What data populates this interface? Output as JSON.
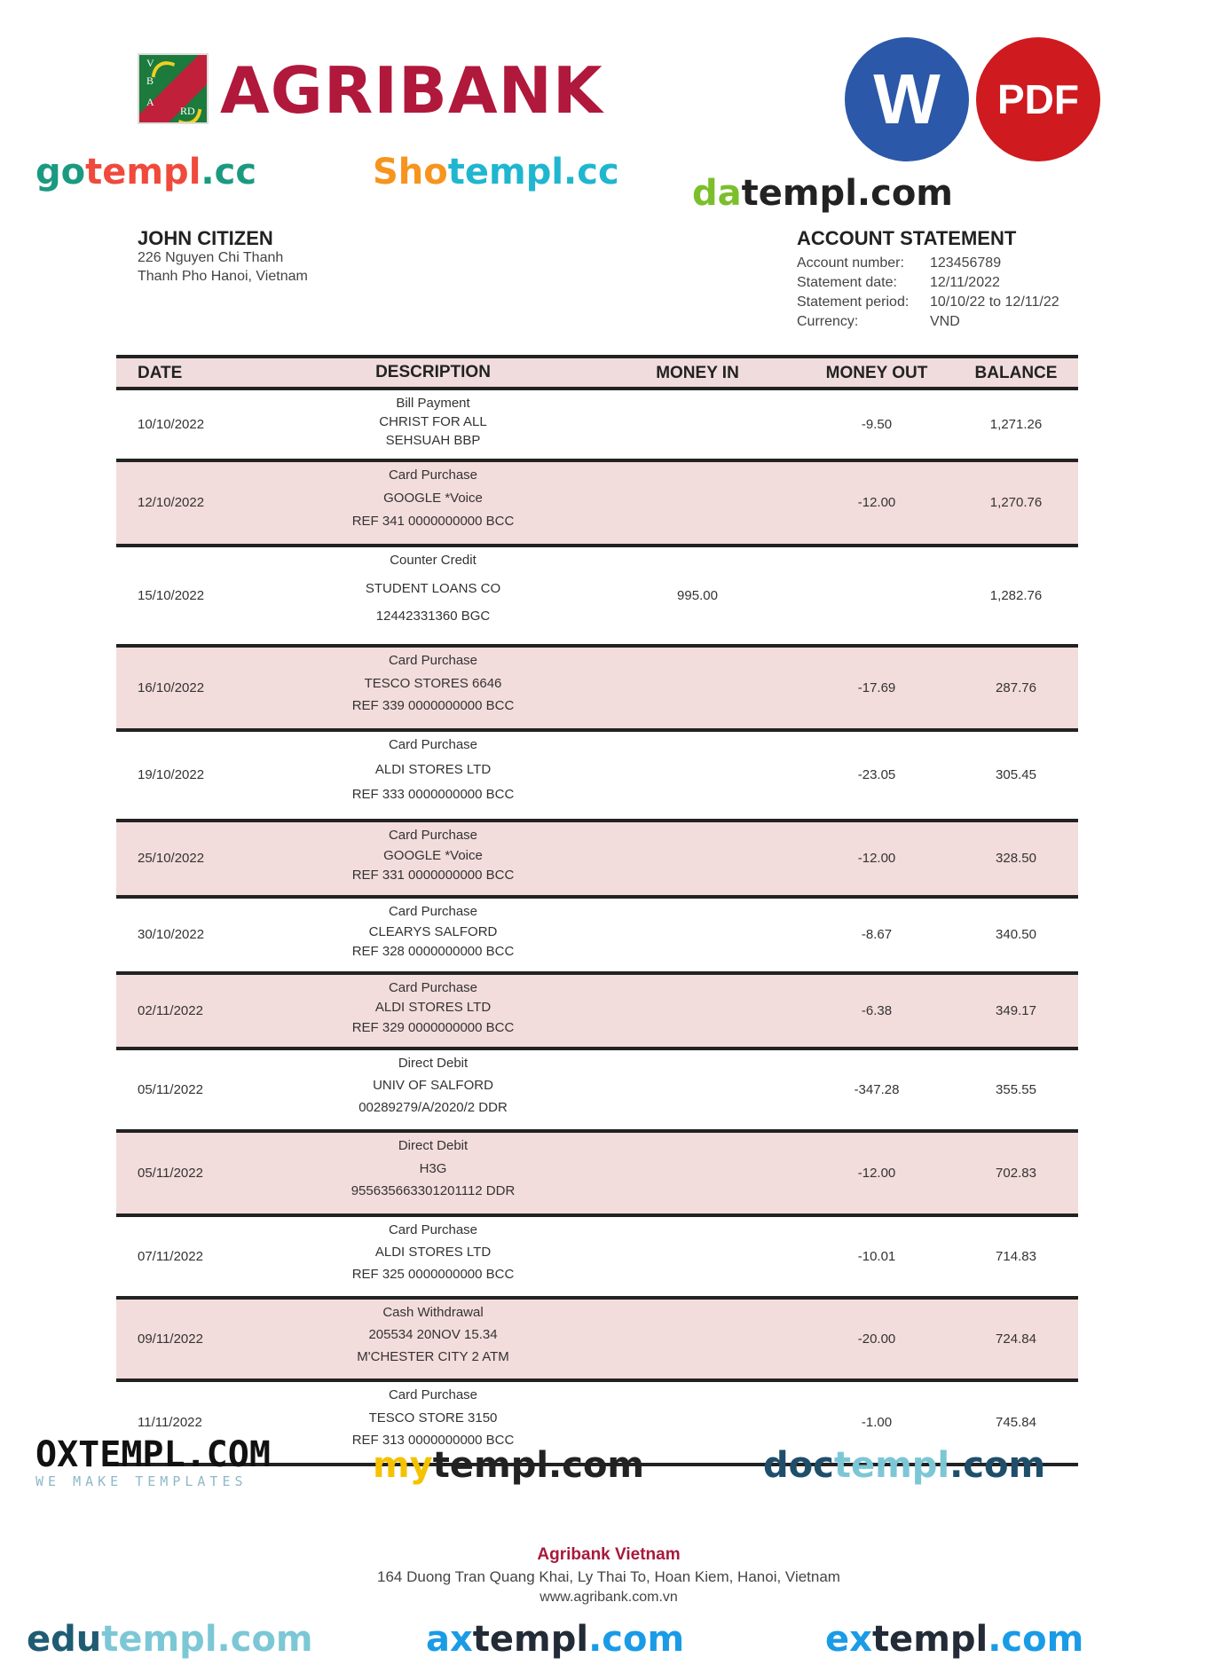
{
  "brand": {
    "logo_text": "AGRIBANK",
    "emblem_letters": "VBARD",
    "color": "#b0183c"
  },
  "badges": {
    "word": "W",
    "pdf": "PDF"
  },
  "customer": {
    "name": "JOHN CITIZEN",
    "address_line1": "226 Nguyen Chi Thanh",
    "address_line2": "Thanh Pho Hanoi, Vietnam"
  },
  "statement": {
    "title": "ACCOUNT STATEMENT",
    "fields": [
      {
        "label": "Account number:",
        "value": "123456789"
      },
      {
        "label": "Statement date:",
        "value": "12/11/2022"
      },
      {
        "label": "Statement period:",
        "value": "10/10/22 to 12/11/22"
      },
      {
        "label": "Currency:",
        "value": "VND"
      }
    ]
  },
  "table": {
    "headers": {
      "date": "DATE",
      "description": "DESCRIPTION",
      "money_in": "MONEY IN",
      "money_out": "MONEY OUT",
      "balance": "BALANCE"
    },
    "rows": [
      {
        "date": "10/10/2022",
        "desc": [
          "Bill Payment",
          "CHRIST FOR ALL",
          "SEHSUAH BBP"
        ],
        "in": "",
        "out": "-9.50",
        "bal": "1,271.26"
      },
      {
        "date": "12/10/2022",
        "desc": [
          "Card Purchase",
          "GOOGLE *Voice",
          "REF 341 0000000000 BCC"
        ],
        "in": "",
        "out": "-12.00",
        "bal": "1,270.76"
      },
      {
        "date": "15/10/2022",
        "desc": [
          "Counter Credit",
          "STUDENT LOANS CO",
          "12442331360 BGC"
        ],
        "in": "995.00",
        "out": "",
        "bal": "1,282.76"
      },
      {
        "date": "16/10/2022",
        "desc": [
          "Card Purchase",
          "TESCO STORES 6646",
          "REF 339 0000000000 BCC"
        ],
        "in": "",
        "out": "-17.69",
        "bal": "287.76"
      },
      {
        "date": "19/10/2022",
        "desc": [
          "Card Purchase",
          "ALDI STORES LTD",
          "REF 333 0000000000 BCC"
        ],
        "in": "",
        "out": "-23.05",
        "bal": "305.45"
      },
      {
        "date": "25/10/2022",
        "desc": [
          "Card Purchase",
          "GOOGLE *Voice",
          "REF 331 0000000000 BCC"
        ],
        "in": "",
        "out": "-12.00",
        "bal": "328.50"
      },
      {
        "date": "30/10/2022",
        "desc": [
          "Card Purchase",
          "CLEARYS SALFORD",
          "REF 328 0000000000 BCC"
        ],
        "in": "",
        "out": "-8.67",
        "bal": "340.50"
      },
      {
        "date": "02/11/2022",
        "desc": [
          "Card Purchase",
          "ALDI STORES LTD",
          "REF 329 0000000000 BCC"
        ],
        "in": "",
        "out": "-6.38",
        "bal": "349.17"
      },
      {
        "date": "05/11/2022",
        "desc": [
          "Direct Debit",
          "UNIV OF SALFORD",
          "00289279/A/2020/2 DDR"
        ],
        "in": "",
        "out": "-347.28",
        "bal": "355.55"
      },
      {
        "date": "05/11/2022",
        "desc": [
          "Direct Debit",
          "H3G",
          "955635663301201112 DDR"
        ],
        "in": "",
        "out": "-12.00",
        "bal": "702.83"
      },
      {
        "date": "07/11/2022",
        "desc": [
          "Card Purchase",
          "ALDI STORES LTD",
          "REF 325 0000000000 BCC"
        ],
        "in": "",
        "out": "-10.01",
        "bal": "714.83"
      },
      {
        "date": "09/11/2022",
        "desc": [
          "Cash Withdrawal",
          "205534 20NOV 15.34",
          "M'CHESTER CITY 2 ATM"
        ],
        "in": "",
        "out": "-20.00",
        "bal": "724.84"
      },
      {
        "date": "11/11/2022",
        "desc": [
          "Card Purchase",
          "TESCO STORE 3150",
          "REF 313 0000000000 BCC"
        ],
        "in": "",
        "out": "-1.00",
        "bal": "745.84"
      }
    ]
  },
  "footer": {
    "bank": "Agribank Vietnam",
    "address": "164 Duong Tran Quang Khai, Ly Thai To, Hoan Kiem, Hanoi, Vietnam",
    "website": "www.agribank.com.vn"
  },
  "watermarks": [
    {
      "a": "go",
      "b": "templ",
      "c": ".cc",
      "colors": [
        "#1a9a80",
        "#ef4a3c",
        "#1a9a80"
      ]
    },
    {
      "a": "Sho",
      "b": "templ",
      "c": ".cc",
      "colors": [
        "#f7941d",
        "#1fb6d0",
        "#1fb6d0"
      ]
    },
    {
      "a": "OXTEMPL.COM",
      "b": "WE MAKE TEMPLATES",
      "c": "",
      "colors": [
        "#111111",
        "#8fb8c8",
        "#111111"
      ]
    },
    {
      "a": "da",
      "b": "templ",
      "c": ".com",
      "colors": [
        "#7bbf2a",
        "#222222",
        "#222222"
      ]
    },
    {
      "a": "my",
      "b": "templ",
      "c": ".com",
      "colors": [
        "#f5c200",
        "#222222",
        "#222222"
      ]
    },
    {
      "a": "doc",
      "b": "templ",
      "c": ".com",
      "colors": [
        "#1f4e6b",
        "#7cc7d6",
        "#1f4e6b"
      ]
    },
    {
      "a": "edu",
      "b": "templ",
      "c": ".com",
      "colors": [
        "#1f5c73",
        "#7cc7d6",
        "#7cc7d6"
      ]
    },
    {
      "a": "ax",
      "b": "templ",
      "c": ".com",
      "colors": [
        "#1a9be6",
        "#222b36",
        "#1a9be6"
      ]
    },
    {
      "a": "ex",
      "b": "templ",
      "c": ".com",
      "colors": [
        "#1a9be6",
        "#222b36",
        "#1a9be6"
      ]
    }
  ]
}
